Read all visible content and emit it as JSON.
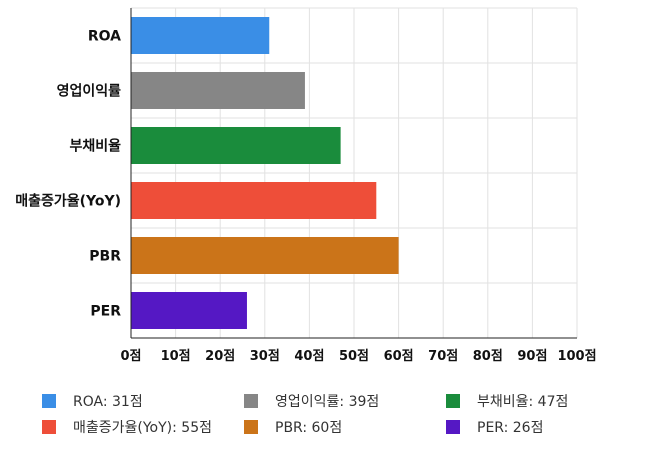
{
  "chart_data": {
    "type": "bar",
    "orientation": "horizontal",
    "categories": [
      "ROA",
      "영업이익률",
      "부채비율",
      "매출증가율(YoY)",
      "PBR",
      "PER"
    ],
    "values": [
      31,
      39,
      47,
      55,
      60,
      26
    ],
    "colors": [
      "#3a8ee6",
      "#868686",
      "#1a8c3c",
      "#ee4e39",
      "#cb7419",
      "#5518c4"
    ],
    "xlim": [
      0,
      100
    ],
    "x_ticks": [
      "0점",
      "10점",
      "20점",
      "30점",
      "40점",
      "50점",
      "60점",
      "70점",
      "80점",
      "90점",
      "100점"
    ],
    "grid": true,
    "legend_position": "bottom"
  },
  "legend": [
    {
      "label": "ROA: 31점",
      "color": "#3a8ee6"
    },
    {
      "label": "영업이익률: 39점",
      "color": "#868686"
    },
    {
      "label": "부채비율: 47점",
      "color": "#1a8c3c"
    },
    {
      "label": "매출증가율(YoY): 55점",
      "color": "#ee4e39"
    },
    {
      "label": "PBR: 60점",
      "color": "#cb7419"
    },
    {
      "label": "PER: 26점",
      "color": "#5518c4"
    }
  ]
}
